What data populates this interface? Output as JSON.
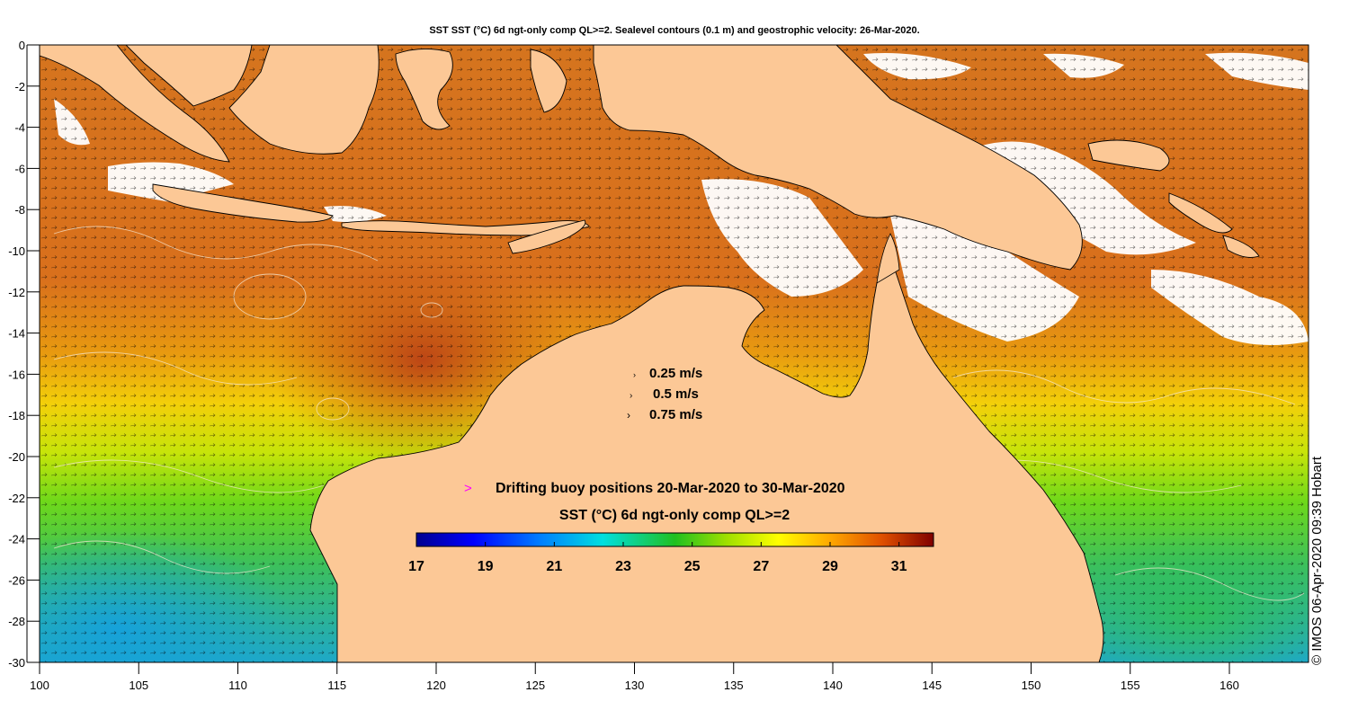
{
  "title": "SST SST (°C) 6d ngt-only comp QL>=2. Sealevel contours (0.1 m) and geostrophic velocity: 26-Mar-2020.",
  "axes": {
    "x_ticks": [
      "100",
      "105",
      "110",
      "115",
      "120",
      "125",
      "130",
      "135",
      "140",
      "145",
      "150",
      "155",
      "160"
    ],
    "y_ticks": [
      "0",
      "-2",
      "-4",
      "-6",
      "-8",
      "-10",
      "-12",
      "-14",
      "-16",
      "-18",
      "-20",
      "-22",
      "-24",
      "-26",
      "-28",
      "-30"
    ],
    "lon_range": [
      100,
      164
    ],
    "lat_range": [
      -30,
      0
    ]
  },
  "velocity_key": [
    {
      "label": "0.25 m/s",
      "speed": 0.25
    },
    {
      "label": "0.5 m/s",
      "speed": 0.5
    },
    {
      "label": "0.75 m/s",
      "speed": 0.75
    }
  ],
  "buoy_legend": {
    "label": "Drifting buoy positions 20-Mar-2020 to 30-Mar-2020",
    "marker_color": "#ff00ff"
  },
  "colorbar": {
    "title": "SST (°C) 6d ngt-only comp QL>=2",
    "range": [
      17,
      32
    ],
    "tick_labels": [
      "17",
      "19",
      "21",
      "23",
      "25",
      "27",
      "29",
      "31"
    ],
    "colormap": "jet"
  },
  "colors": {
    "land": "#fcc896",
    "warm_sst": "#d2681c",
    "cloud_mask": "#ffffff"
  },
  "credit": "© IMOS 06-Apr-2020 09:39 Hobart"
}
